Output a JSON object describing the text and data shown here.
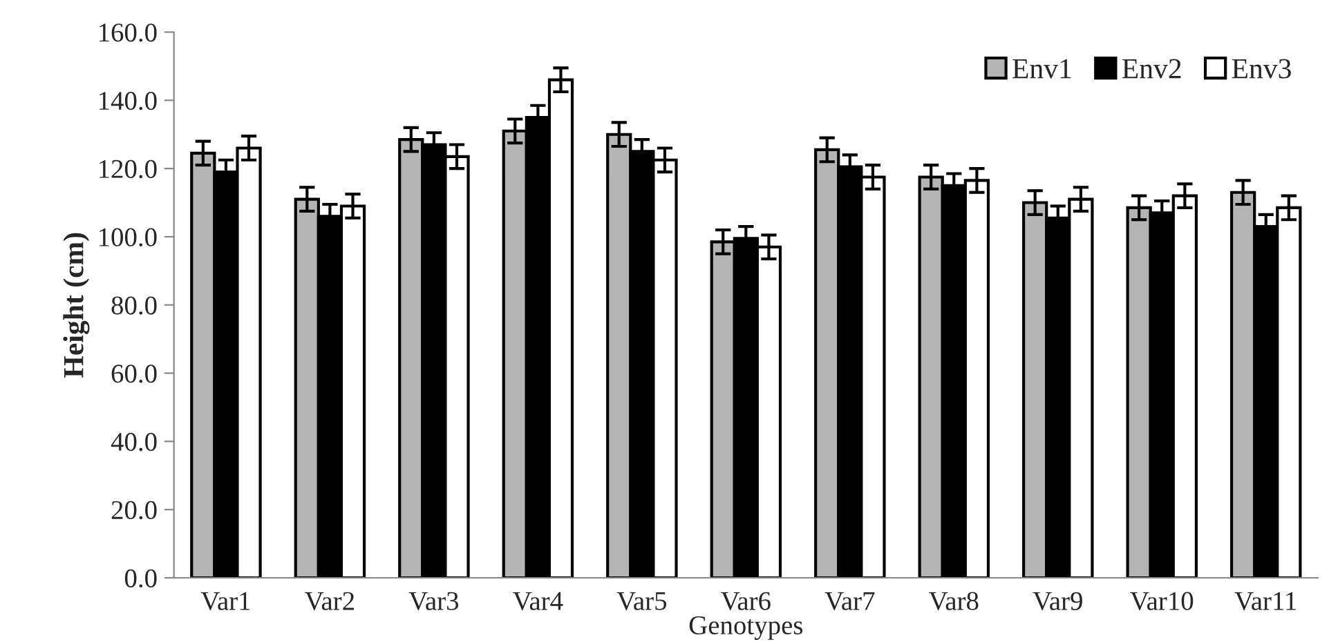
{
  "chart_data": {
    "type": "bar",
    "xlabel": "Genotypes",
    "ylabel": "Height (cm)",
    "categories": [
      "Var1",
      "Var2",
      "Var3",
      "Var4",
      "Var5",
      "Var6",
      "Var7",
      "Var8",
      "Var9",
      "Var10",
      "Var11"
    ],
    "series": [
      {
        "name": "Env1",
        "color": "#b4b4b4",
        "values": [
          124.5,
          111,
          128.5,
          131,
          130,
          98.5,
          125.5,
          117.5,
          110,
          108.5,
          113
        ],
        "errors": [
          3.5,
          3.5,
          3.5,
          3.5,
          3.5,
          3.5,
          3.5,
          3.5,
          3.5,
          3.5,
          3.5
        ]
      },
      {
        "name": "Env2",
        "color": "#000000",
        "values": [
          119,
          106,
          127,
          135,
          125,
          99.5,
          120.5,
          115,
          105.5,
          107,
          103
        ],
        "errors": [
          3.5,
          3.5,
          3.5,
          3.5,
          3.5,
          3.5,
          3.5,
          3.5,
          3.5,
          3.5,
          3.5
        ]
      },
      {
        "name": "Env3",
        "color": "#ffffff",
        "values": [
          126,
          109,
          123.5,
          146,
          122.5,
          97,
          117.5,
          116.5,
          111,
          112,
          108.5
        ],
        "errors": [
          3.5,
          3.5,
          3.5,
          3.5,
          3.5,
          3.5,
          3.5,
          3.5,
          3.5,
          3.5,
          3.5
        ]
      }
    ],
    "ylim": [
      0,
      160
    ],
    "yticks": [
      {
        "value": 0,
        "label": "0.0"
      },
      {
        "value": 20,
        "label": "20.0"
      },
      {
        "value": 40,
        "label": "40.0"
      },
      {
        "value": 60,
        "label": "60.0"
      },
      {
        "value": 80,
        "label": "80.0"
      },
      {
        "value": 100,
        "label": "100.0"
      },
      {
        "value": 120,
        "label": "120.0"
      },
      {
        "value": 140,
        "label": "140.0"
      },
      {
        "value": 160,
        "label": "160.0"
      }
    ],
    "grid": false,
    "legend": "top right"
  }
}
